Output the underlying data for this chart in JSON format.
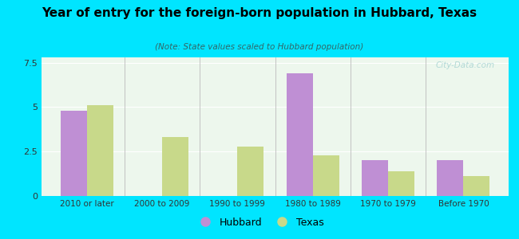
{
  "title": "Year of entry for the foreign-born population in Hubbard, Texas",
  "subtitle": "(Note: State values scaled to Hubbard population)",
  "categories": [
    "2010 or later",
    "2000 to 2009",
    "1990 to 1999",
    "1980 to 1989",
    "1970 to 1979",
    "Before 1970"
  ],
  "hubbard_values": [
    4.8,
    0,
    0,
    6.9,
    2.0,
    2.0
  ],
  "texas_values": [
    5.1,
    3.3,
    2.8,
    2.3,
    1.4,
    1.1
  ],
  "hubbard_color": "#bf8fd4",
  "texas_color": "#c8d98a",
  "background_outer": "#00e5ff",
  "background_inner": "#edf7ed",
  "yticks": [
    0,
    2.5,
    5,
    7.5
  ],
  "ylim": [
    0,
    7.8
  ],
  "bar_width": 0.35,
  "legend_labels": [
    "Hubbard",
    "Texas"
  ],
  "watermark": "City-Data.com"
}
